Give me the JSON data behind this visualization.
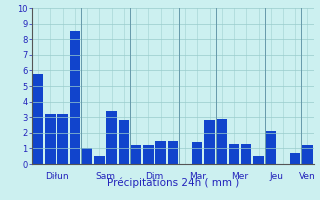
{
  "bars": [
    5.8,
    3.2,
    3.2,
    8.5,
    1.0,
    0.5,
    3.4,
    2.8,
    1.2,
    1.2,
    1.5,
    1.5,
    0.0,
    1.4,
    2.8,
    2.9,
    1.3,
    1.3,
    0.5,
    2.1,
    0.0,
    0.7,
    1.2
  ],
  "n_bars": 23,
  "day_labels": [
    "Diłun",
    "Sam",
    "Dim",
    "Mar",
    "Mer",
    "Jeu",
    "Ven"
  ],
  "bar_color": "#1144cc",
  "background_color": "#ccf0f0",
  "grid_color": "#99cccc",
  "sep_color": "#6699aa",
  "xlabel": "Précipitations 24h ( mm )",
  "xlabel_color": "#2222bb",
  "tick_color": "#2222bb",
  "ylim": [
    0,
    10
  ],
  "yticks": [
    0,
    1,
    2,
    3,
    4,
    5,
    6,
    7,
    8,
    9,
    10
  ]
}
